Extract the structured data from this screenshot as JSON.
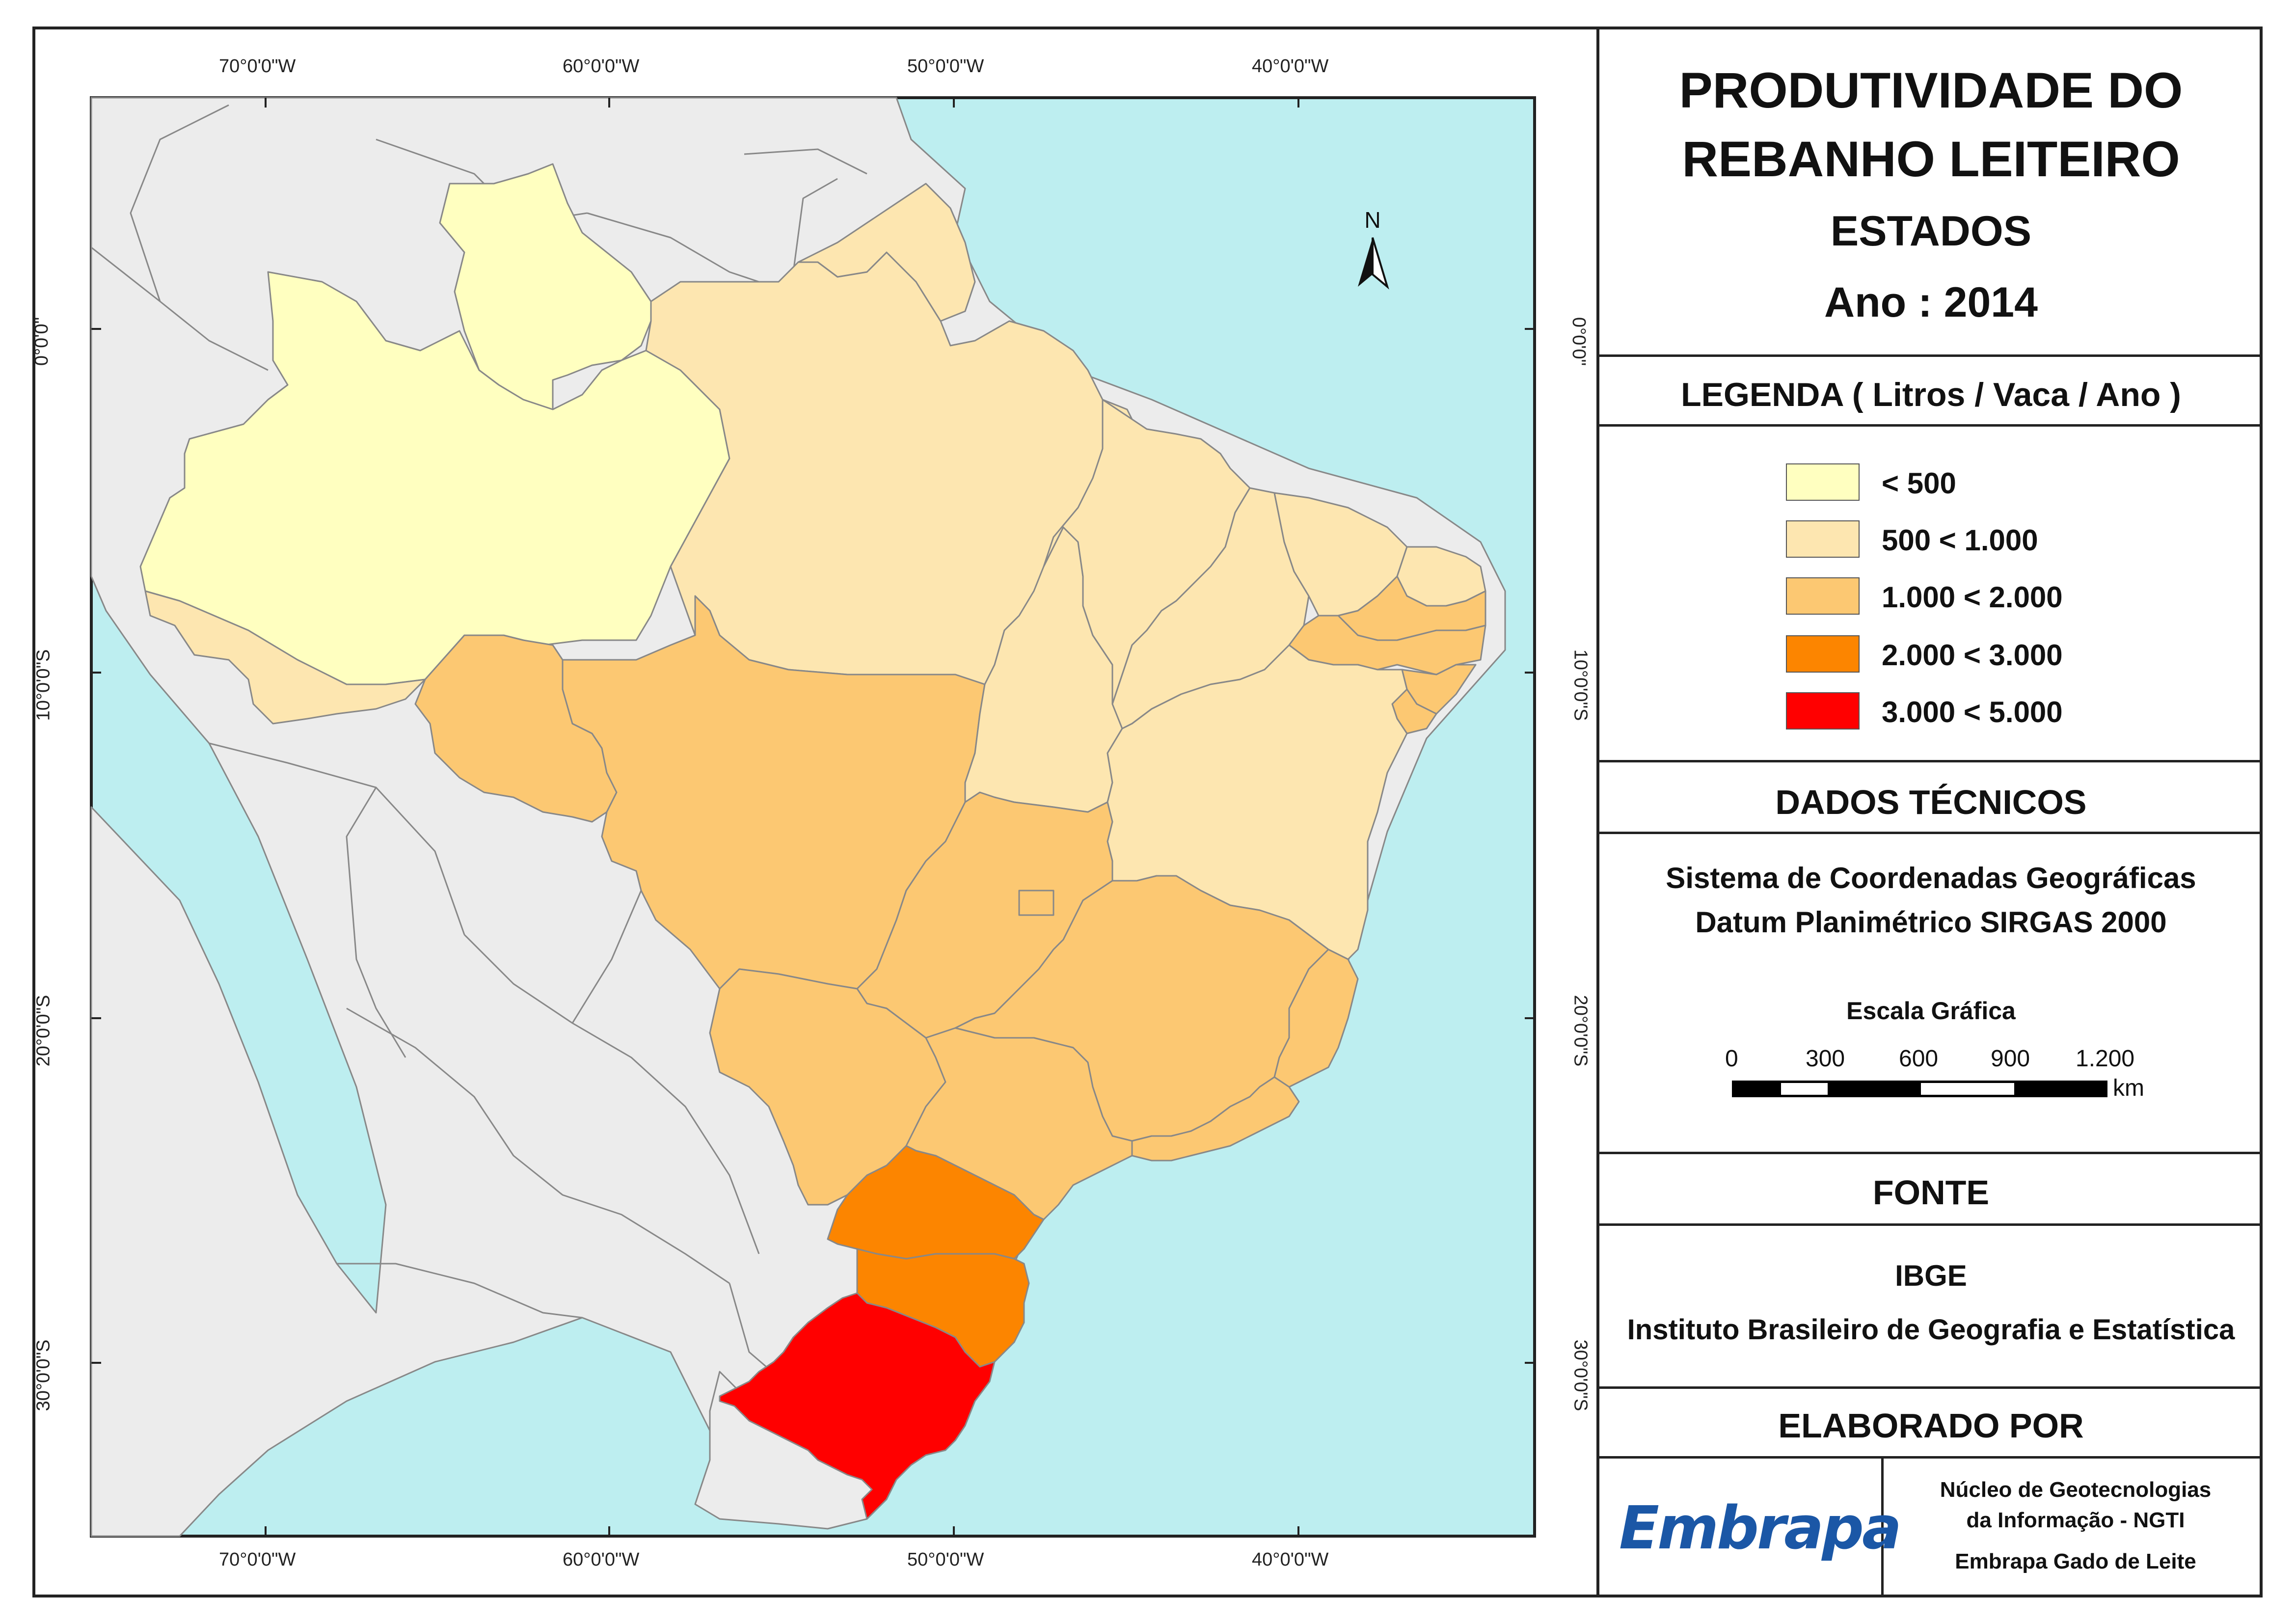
{
  "title": {
    "line1": "PRODUTIVIDADE DO",
    "line2": "REBANHO LEITEIRO",
    "subtitle": "ESTADOS",
    "year": "Ano : 2014"
  },
  "legend": {
    "heading": "LEGENDA ( Litros / Vaca / Ano )",
    "classes": [
      {
        "label": "< 500",
        "color": "#ffffc0"
      },
      {
        "label": "500 < 1.000",
        "color": "#fde6b0"
      },
      {
        "label": "1.000 < 2.000",
        "color": "#fcc872"
      },
      {
        "label": "2.000 < 3.000",
        "color": "#fc8500"
      },
      {
        "label": "3.000 < 5.000",
        "color": "#ff0000"
      }
    ]
  },
  "technical": {
    "heading": "DADOS TÉCNICOS",
    "line1": "Sistema de Coordenadas Geográficas",
    "line2": "Datum Planimétrico SIRGAS 2000",
    "scale_title": "Escala Gráfica",
    "scale_ticks": [
      "0",
      "300",
      "600",
      "900",
      "1.200"
    ],
    "scale_unit": "km"
  },
  "source": {
    "heading": "FONTE",
    "line1": "IBGE",
    "line2": "Instituto Brasileiro de Geografia e Estatística"
  },
  "author": {
    "heading": "ELABORADO POR",
    "logo_text": "Embrapa",
    "line1": "Núcleo de Geotecnologias",
    "line2": "da Informação - NGTI",
    "line3": "Embrapa Gado de Leite"
  },
  "map": {
    "north_label": "N",
    "lon_labels": [
      "70°0'0\"W",
      "60°0'0\"W",
      "50°0'0\"W",
      "40°0'0\"W"
    ],
    "lat_labels": [
      "0°0'0\"",
      "10°0'0\"S",
      "20°0'0\"S",
      "30°0'0\"S"
    ],
    "ocean_color": "#bdeef0",
    "land_color": "#ececec"
  }
}
